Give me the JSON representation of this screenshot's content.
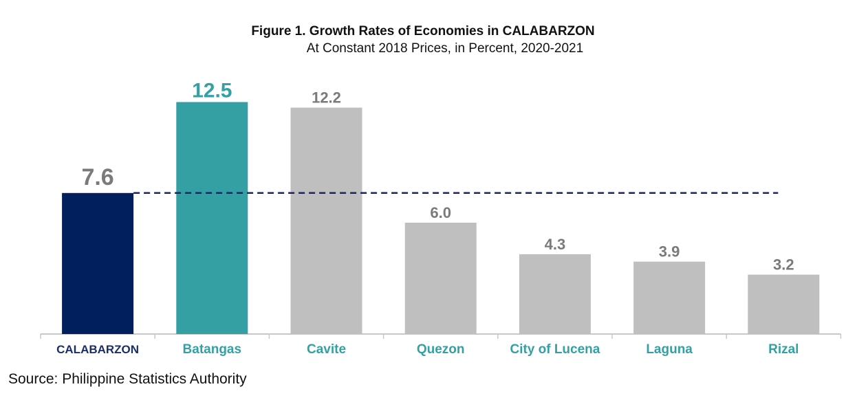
{
  "chart_data": {
    "type": "bar",
    "title": "Figure 1. Growth Rates of Economies in CALABARZON",
    "subtitle": "At Constant 2018 Prices, in Percent, 2020-2021",
    "categories": [
      "CALABARZON",
      "Batangas",
      "Cavite",
      "Quezon",
      "City of Lucena",
      "Laguna",
      "Rizal"
    ],
    "values": [
      7.6,
      12.5,
      12.2,
      6.0,
      4.3,
      3.9,
      3.2
    ],
    "value_labels": [
      "7.6",
      "12.5",
      "12.2",
      "6.0",
      "4.3",
      "3.9",
      "3.2"
    ],
    "reference_line": 7.6,
    "ylim": [
      0,
      14
    ],
    "xlabel": "",
    "ylabel": "",
    "grid": false,
    "legend": "none",
    "colors": {
      "regional": "#001f5c",
      "highlight": "#34a0a4",
      "other": "#bfbfbf",
      "value_label_regional": "#7a7a7a",
      "value_label_highlight": "#34a0a4",
      "value_label_other": "#7a7a7a",
      "category_regional": "#1a2d6b",
      "category_other": "#34a0a4",
      "reference_line": "#1a2466",
      "axis": "#c8c8c8"
    }
  },
  "source": "Source: Philippine Statistics Authority"
}
